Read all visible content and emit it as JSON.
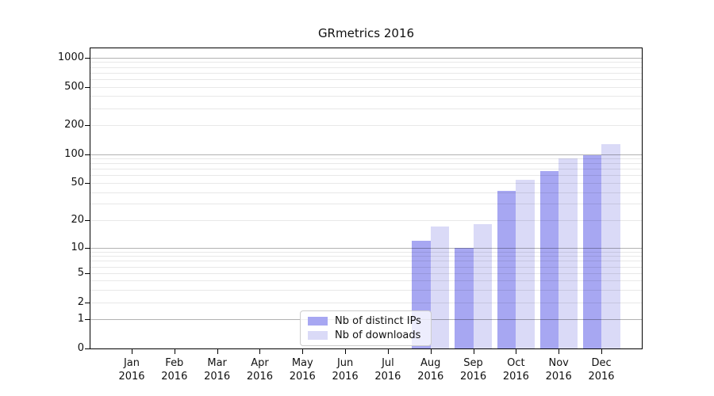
{
  "chart_data": {
    "type": "bar",
    "title": "GRmetrics 2016",
    "x_months": [
      "Jan",
      "Feb",
      "Mar",
      "Apr",
      "May",
      "Jun",
      "Jul",
      "Aug",
      "Sep",
      "Oct",
      "Nov",
      "Dec"
    ],
    "x_year": "2016",
    "series": [
      {
        "name": "Nb of distinct IPs",
        "color": "#a7a7f2",
        "values": [
          0,
          0,
          0,
          0,
          0,
          0,
          0,
          12,
          10,
          41,
          66,
          97
        ]
      },
      {
        "name": "Nb of downloads",
        "color": "#dadaf7",
        "values": [
          0,
          0,
          0,
          0,
          0,
          0,
          0,
          17,
          18,
          54,
          90,
          127
        ]
      }
    ],
    "yscale": "log10(1+y)",
    "ylim": [
      0,
      1280
    ],
    "yticks": [
      1000,
      500,
      200,
      100,
      50,
      20,
      10,
      5,
      2,
      1,
      0
    ],
    "major_gridlines": [
      1,
      10,
      100,
      1000
    ],
    "grid": true,
    "legend_position": "bottom-center-inside"
  },
  "colors": {
    "background": "#ffffff",
    "spine": "#000000",
    "text": "#111111",
    "major_grid": "rgba(0,0,0,0.30)",
    "minor_grid": "rgba(0,0,0,0.09)"
  }
}
